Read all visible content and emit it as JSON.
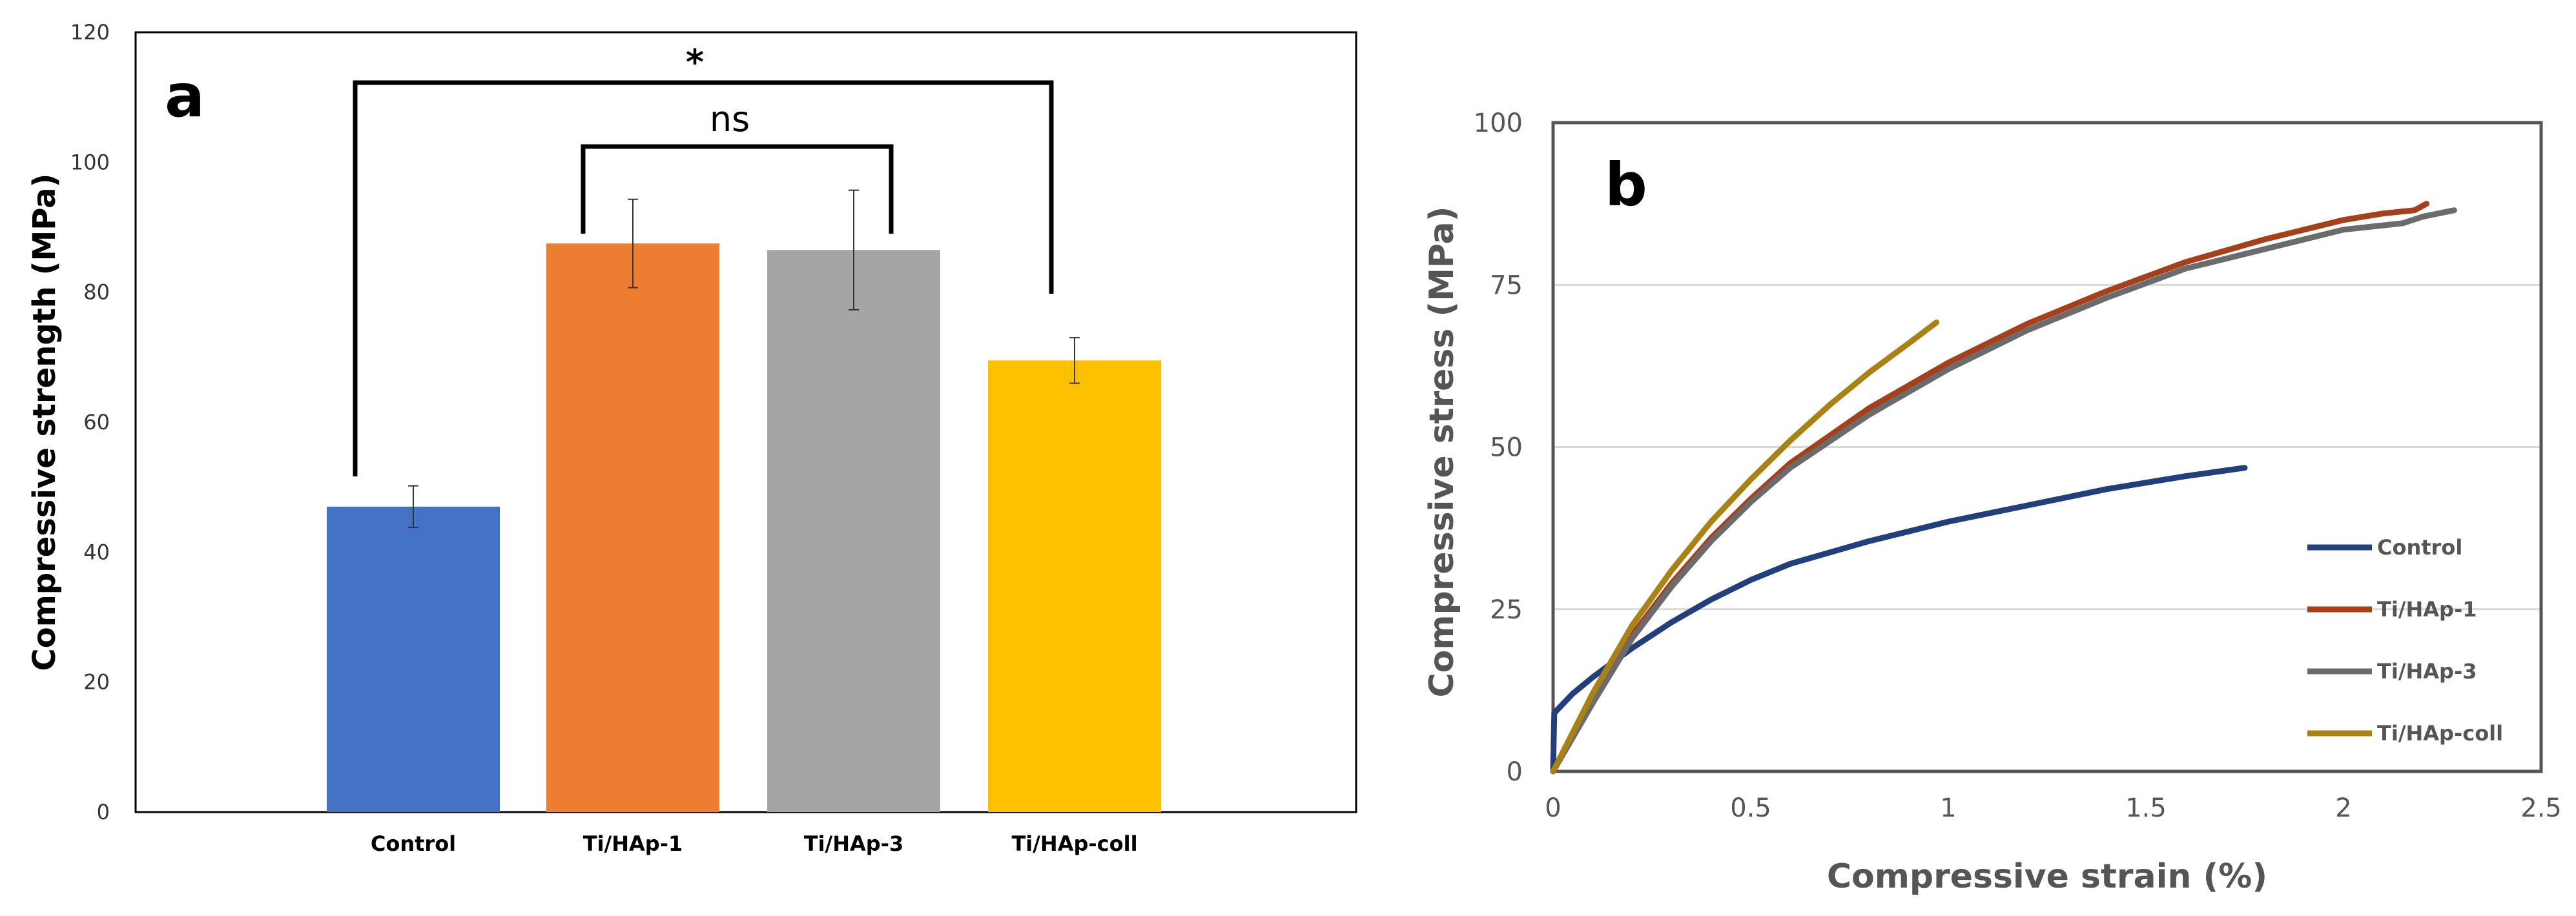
{
  "chart_data": [
    {
      "type": "bar",
      "panel_label": "a",
      "title": "",
      "xlabel": "",
      "ylabel": "Compressive strength (MPa)",
      "ylim": [
        0,
        120
      ],
      "yticks": [
        "0",
        "20",
        "40",
        "60",
        "80",
        "100",
        "120"
      ],
      "categories": [
        "Control",
        "Ti/HAp-1",
        "Ti/HAp-3",
        "Ti/HAp-coll"
      ],
      "values": [
        47,
        87.5,
        86.5,
        69.5
      ],
      "errors": [
        3.2,
        6.8,
        9.2,
        3.5
      ],
      "colors": [
        "#4472c4",
        "#ed7d31",
        "#a5a5a5",
        "#ffc000"
      ],
      "grid": false,
      "annotations": [
        {
          "label": "*",
          "from": "Control",
          "to": "Ti/HAp-coll"
        },
        {
          "label": "ns",
          "from": "Ti/HAp-1",
          "to": "Ti/HAp-3"
        }
      ]
    },
    {
      "type": "line",
      "panel_label": "b",
      "title": "",
      "xlabel": "Compressive strain (%)",
      "ylabel": "Compressive stress (MPa)",
      "xlim": [
        0,
        2.5
      ],
      "ylim": [
        0,
        100
      ],
      "xticks": [
        "0",
        "0.5",
        "1",
        "1.5",
        "2",
        "2.5"
      ],
      "yticks": [
        "0",
        "25",
        "50",
        "75",
        "100"
      ],
      "grid": true,
      "legend": "right",
      "series": [
        {
          "name": "Control",
          "color": "#203f7c",
          "x": [
            0,
            0.003,
            0.05,
            0.1,
            0.2,
            0.3,
            0.4,
            0.5,
            0.6,
            0.8,
            1.0,
            1.2,
            1.4,
            1.6,
            1.75
          ],
          "y": [
            0,
            9,
            12,
            14.5,
            19,
            23,
            26.5,
            29.5,
            32,
            35.5,
            38.5,
            41,
            43.5,
            45.5,
            46.8
          ]
        },
        {
          "name": "Ti/HAp-1",
          "color": "#a5401b",
          "x": [
            0,
            0.1,
            0.2,
            0.3,
            0.4,
            0.5,
            0.6,
            0.8,
            1.0,
            1.2,
            1.4,
            1.6,
            1.8,
            2.0,
            2.1,
            2.18,
            2.21
          ],
          "y": [
            0,
            11,
            21,
            29,
            36,
            42,
            47.5,
            56,
            63,
            69,
            74,
            78.5,
            82,
            85,
            86,
            86.5,
            87.5
          ]
        },
        {
          "name": "Ti/HAp-3",
          "color": "#6b6b6b",
          "x": [
            0,
            0.1,
            0.2,
            0.3,
            0.4,
            0.5,
            0.6,
            0.8,
            1.0,
            1.2,
            1.4,
            1.6,
            1.8,
            2.0,
            2.15,
            2.2,
            2.28
          ],
          "y": [
            0,
            10.5,
            20.5,
            28.5,
            35.5,
            41.5,
            46.8,
            55,
            62,
            68,
            73,
            77.5,
            80.5,
            83.5,
            84.5,
            85.5,
            86.5
          ]
        },
        {
          "name": "Ti/HAp-coll",
          "color": "#a98213",
          "x": [
            0,
            0.1,
            0.2,
            0.3,
            0.4,
            0.5,
            0.6,
            0.7,
            0.8,
            0.9,
            0.97
          ],
          "y": [
            0,
            12,
            22.5,
            31,
            38.5,
            45,
            51,
            56.5,
            61.5,
            66,
            69.2
          ]
        }
      ]
    }
  ]
}
